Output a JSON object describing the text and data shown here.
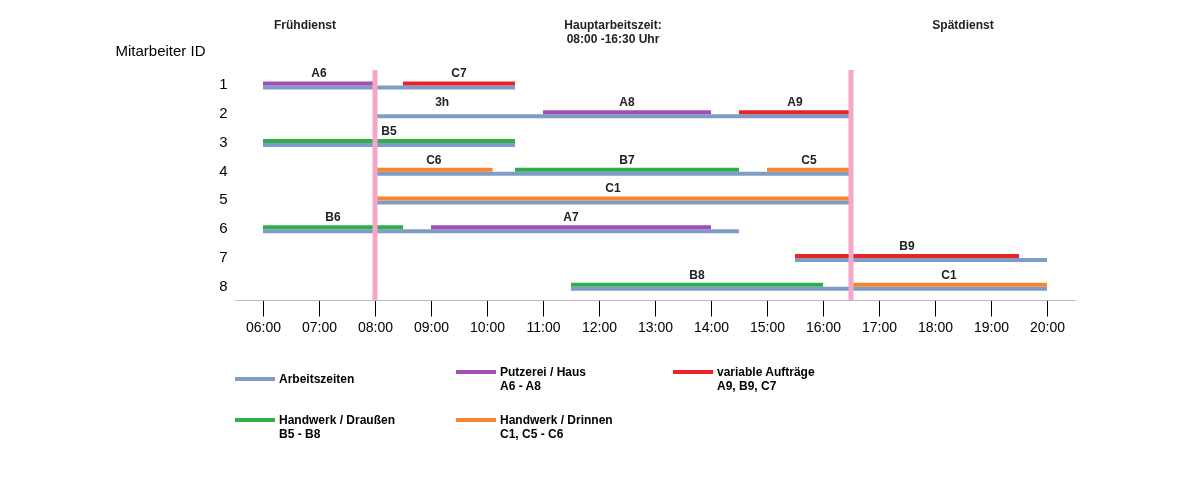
{
  "chart_data": {
    "type": "bar",
    "orientation": "horizontal",
    "ylabel": "Mitarbeiter ID",
    "categories": [
      "1",
      "2",
      "3",
      "4",
      "5",
      "6",
      "7",
      "8"
    ],
    "series": [
      {
        "name": "Arbeitszeiten",
        "color": "#7f9cc6",
        "base": [
          6,
          8,
          6,
          8,
          8,
          6,
          15.5,
          11.5
        ],
        "values": [
          4.5,
          8.5,
          4.5,
          8.5,
          8.5,
          8.5,
          4.5,
          8.5
        ]
      },
      {
        "name": "Putzerei / Haus\nA6 - A8",
        "color": "#9f4fb6",
        "base": [
          6,
          11,
          null,
          null,
          null,
          9,
          null,
          null
        ],
        "values": [
          2,
          3,
          null,
          null,
          null,
          5,
          null,
          null
        ],
        "value_labels": [
          "A6",
          "A8",
          null,
          null,
          null,
          "A7",
          null,
          null
        ]
      },
      {
        "name": "variable Aufträge\nA9, B9, C7",
        "color": "#e8232a",
        "base": [
          8.5,
          14.5,
          null,
          null,
          null,
          null,
          15.5,
          null
        ],
        "values": [
          2,
          2,
          null,
          null,
          null,
          null,
          4,
          null
        ],
        "value_labels": [
          "C7",
          "A9",
          null,
          null,
          null,
          null,
          "B9",
          null
        ]
      },
      {
        "name": "Handwerk / Draußen\nB5 - B8",
        "color": "#2fae4a",
        "base": [
          null,
          null,
          6,
          10.5,
          null,
          6,
          null,
          11.5
        ],
        "values": [
          null,
          null,
          4.5,
          4,
          null,
          2.5,
          null,
          4.5
        ],
        "value_labels": [
          null,
          null,
          "B5",
          "B7",
          null,
          "B6",
          null,
          "B8"
        ]
      },
      {
        "name": "Handwerk / Drinnen\nC1, C5 - C6",
        "color": "#f5862f",
        "base": [
          null,
          null,
          null,
          8,
          8,
          null,
          null,
          16.5
        ],
        "values": [
          null,
          null,
          null,
          2.1,
          8.5,
          null,
          null,
          3.5
        ],
        "value_labels": [
          null,
          null,
          null,
          "C6",
          "C1",
          null,
          null,
          "C1"
        ]
      },
      {
        "color": "#f5862f",
        "base": [
          null,
          null,
          null,
          15,
          null,
          null,
          null,
          null
        ],
        "values": [
          null,
          null,
          null,
          1.5,
          null,
          null,
          null,
          null
        ],
        "value_labels": [
          null,
          null,
          null,
          "C5",
          null,
          null,
          null,
          null
        ]
      }
    ],
    "xlim": [
      5.5,
      20.5
    ],
    "xticks": [
      {
        "value": 6,
        "label": "06:00"
      },
      {
        "value": 7,
        "label": "07:00"
      },
      {
        "value": 8,
        "label": "08:00"
      },
      {
        "value": 9,
        "label": "09:00"
      },
      {
        "value": 10,
        "label": "10:00"
      },
      {
        "value": 11,
        "label": "11:00"
      },
      {
        "value": 12,
        "label": "12:00"
      },
      {
        "value": 13,
        "label": "13:00"
      },
      {
        "value": 14,
        "label": "14:00"
      },
      {
        "value": 15,
        "label": "15:00"
      },
      {
        "value": 16,
        "label": "16:00"
      },
      {
        "value": 17,
        "label": "17:00"
      },
      {
        "value": 18,
        "label": "18:00"
      },
      {
        "value": 19,
        "label": "19:00"
      },
      {
        "value": 20,
        "label": "20:00"
      }
    ],
    "ref_lines": [
      {
        "axis": "x",
        "value": 8,
        "color": "#f7a6c6"
      },
      {
        "axis": "x",
        "value": 16.5,
        "color": "#f7a6c6"
      }
    ],
    "annotations": [
      "Frühdienst",
      "Hauptarbeitszeit:\n08:00 -16:30 Uhr",
      "Spätdienst",
      {
        "text": "3h",
        "x": 9.2,
        "y": "2"
      }
    ],
    "legend": "bottom"
  }
}
